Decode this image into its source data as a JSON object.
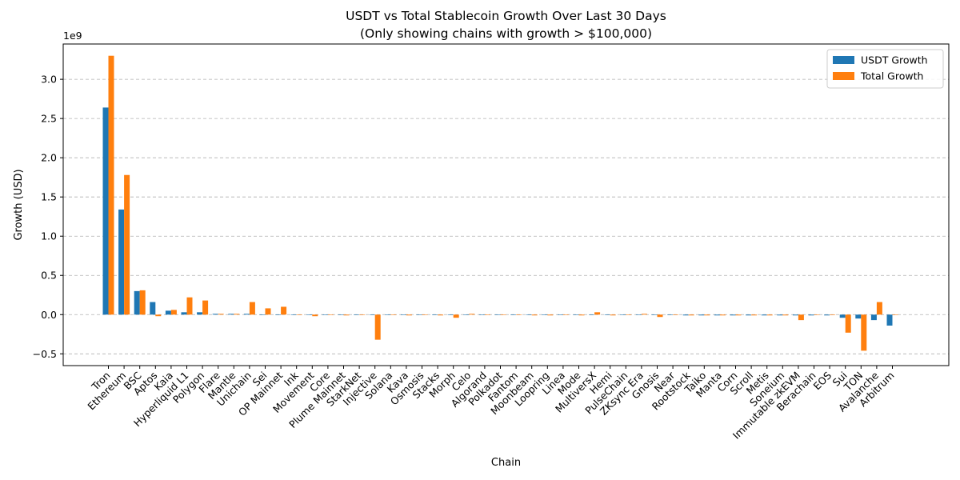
{
  "chart_data": {
    "type": "bar",
    "title": "USDT vs Total Stablecoin Growth Over Last 30 Days",
    "subtitle": "(Only showing chains with growth > $100,000)",
    "xlabel": "Chain",
    "ylabel": "Growth (USD)",
    "y_offset_label": "1e9",
    "y_scale": 1000000000,
    "ylim": [
      -0.65,
      3.45
    ],
    "yticks": [
      -0.5,
      0.0,
      0.5,
      1.0,
      1.5,
      2.0,
      2.5,
      3.0
    ],
    "ytick_labels": [
      "−0.5",
      "0.0",
      "0.5",
      "1.0",
      "1.5",
      "2.0",
      "2.5",
      "3.0"
    ],
    "grid": "y-dashed",
    "legend_position": "top-right",
    "colors": {
      "USDT Growth": "#1f77b4",
      "Total Growth": "#ff7f0e"
    },
    "categories": [
      "Tron",
      "Ethereum",
      "BSC",
      "Aptos",
      "Kaia",
      "Hyperliquid L1",
      "Polygon",
      "Flare",
      "Mantle",
      "Unichain",
      "Sei",
      "OP Mainnet",
      "Ink",
      "Movement",
      "Core",
      "Plume Mainnet",
      "StarkNet",
      "Injective",
      "Solana",
      "Kava",
      "Osmosis",
      "Stacks",
      "Morph",
      "Celo",
      "Algorand",
      "Polkadot",
      "Fantom",
      "Moonbeam",
      "Loopring",
      "Linea",
      "Mode",
      "MultiversX",
      "Hemi",
      "PulseChain",
      "ZKsync Era",
      "Gnosis",
      "Near",
      "Rootstock",
      "Taiko",
      "Manta",
      "Corn",
      "Scroll",
      "Metis",
      "Soneium",
      "Immutable zkEVM",
      "Berachain",
      "EOS",
      "Sui",
      "TON",
      "Avalanche",
      "Arbitrum"
    ],
    "series": [
      {
        "name": "USDT Growth",
        "values": [
          2.64,
          1.34,
          0.3,
          0.16,
          0.05,
          0.03,
          0.03,
          0.01,
          0.01,
          0.01,
          0,
          0,
          0,
          0,
          0,
          0,
          0,
          0,
          0,
          0,
          0,
          0,
          0,
          0,
          0,
          0,
          0,
          0,
          0,
          0,
          0,
          0,
          0,
          0,
          0,
          0,
          0,
          -0.01,
          -0.01,
          -0.01,
          -0.01,
          -0.01,
          -0.01,
          -0.01,
          -0.01,
          -0.01,
          -0.01,
          -0.04,
          -0.05,
          -0.07,
          -0.14
        ]
      },
      {
        "name": "Total Growth",
        "values": [
          3.3,
          1.78,
          0.31,
          -0.02,
          0.06,
          0.22,
          0.18,
          0.01,
          0.01,
          0.16,
          0.08,
          0.1,
          0,
          -0.02,
          0,
          -0.01,
          0,
          -0.32,
          0,
          -0.01,
          0,
          -0.01,
          -0.04,
          0.01,
          0,
          0,
          0,
          -0.01,
          -0.01,
          0,
          -0.01,
          0.03,
          -0.01,
          0,
          0.01,
          -0.03,
          0,
          -0.01,
          -0.01,
          -0.01,
          -0.01,
          -0.01,
          -0.01,
          -0.01,
          -0.07,
          0,
          0,
          -0.23,
          -0.46,
          0.16,
          0
        ]
      }
    ]
  }
}
